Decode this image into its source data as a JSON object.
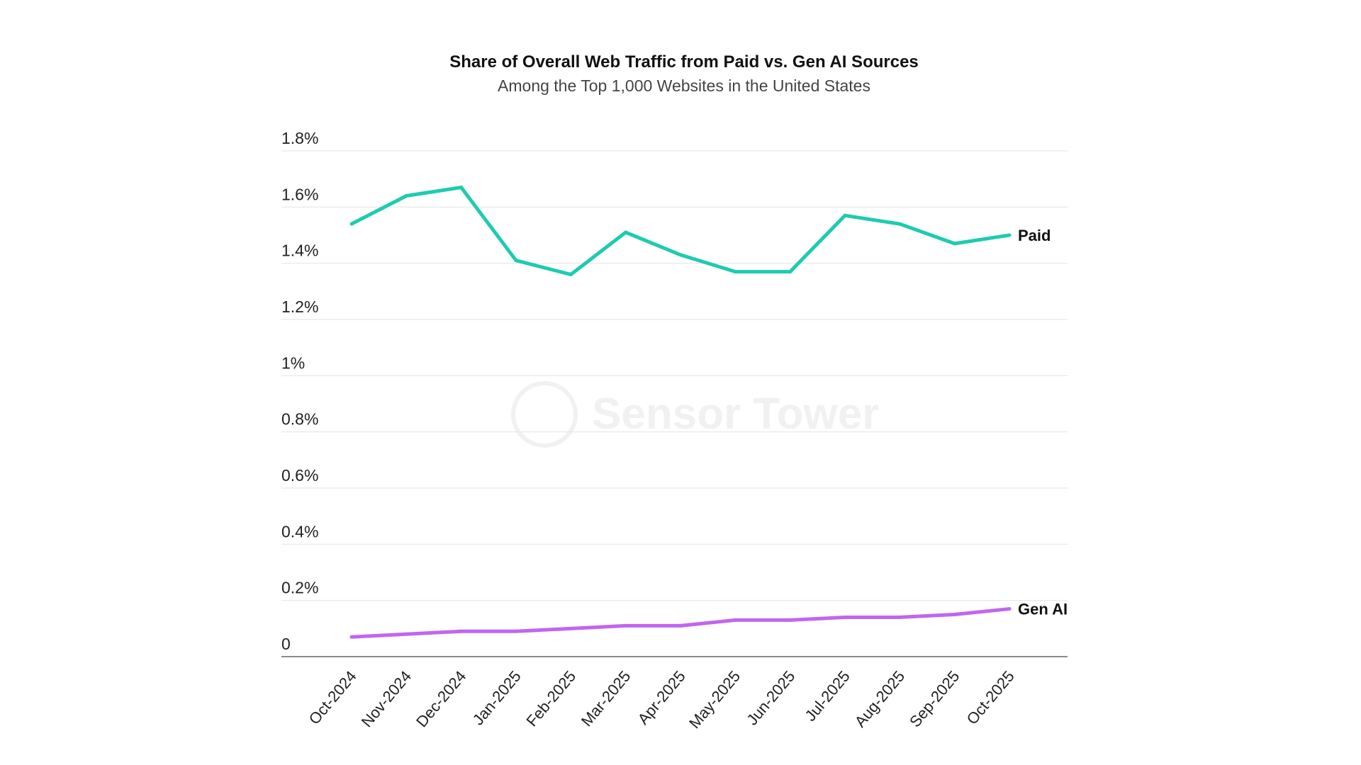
{
  "chart_data": {
    "type": "line",
    "title": "Share of Overall Web Traffic from Paid vs. Gen AI Sources",
    "subtitle": "Among the Top 1,000 Websites in the United States",
    "xlabel": "",
    "ylabel": "",
    "ylim": [
      0,
      1.8
    ],
    "yticks": [
      0,
      0.2,
      0.4,
      0.6,
      0.8,
      1.0,
      1.2,
      1.4,
      1.6,
      1.8
    ],
    "ytick_labels": [
      "0",
      "0.2%",
      "0.4%",
      "0.6%",
      "0.8%",
      "1%",
      "1.2%",
      "1.4%",
      "1.6%",
      "1.8%"
    ],
    "grid": true,
    "legend": "inline-end-labels",
    "categories": [
      "Oct-2024",
      "Nov-2024",
      "Dec-2024",
      "Jan-2025",
      "Feb-2025",
      "Mar-2025",
      "Apr-2025",
      "May-2025",
      "Jun-2025",
      "Jul-2025",
      "Aug-2025",
      "Sep-2025",
      "Oct-2025"
    ],
    "series": [
      {
        "name": "Paid",
        "color": "#1ecbb0",
        "values": [
          1.54,
          1.64,
          1.67,
          1.41,
          1.36,
          1.51,
          1.43,
          1.37,
          1.37,
          1.57,
          1.54,
          1.47,
          1.5
        ]
      },
      {
        "name": "Gen AI",
        "color": "#c066f0",
        "values": [
          0.07,
          0.08,
          0.09,
          0.09,
          0.1,
          0.11,
          0.11,
          0.13,
          0.13,
          0.14,
          0.14,
          0.15,
          0.17
        ]
      }
    ],
    "watermark": "Sensor Tower"
  }
}
